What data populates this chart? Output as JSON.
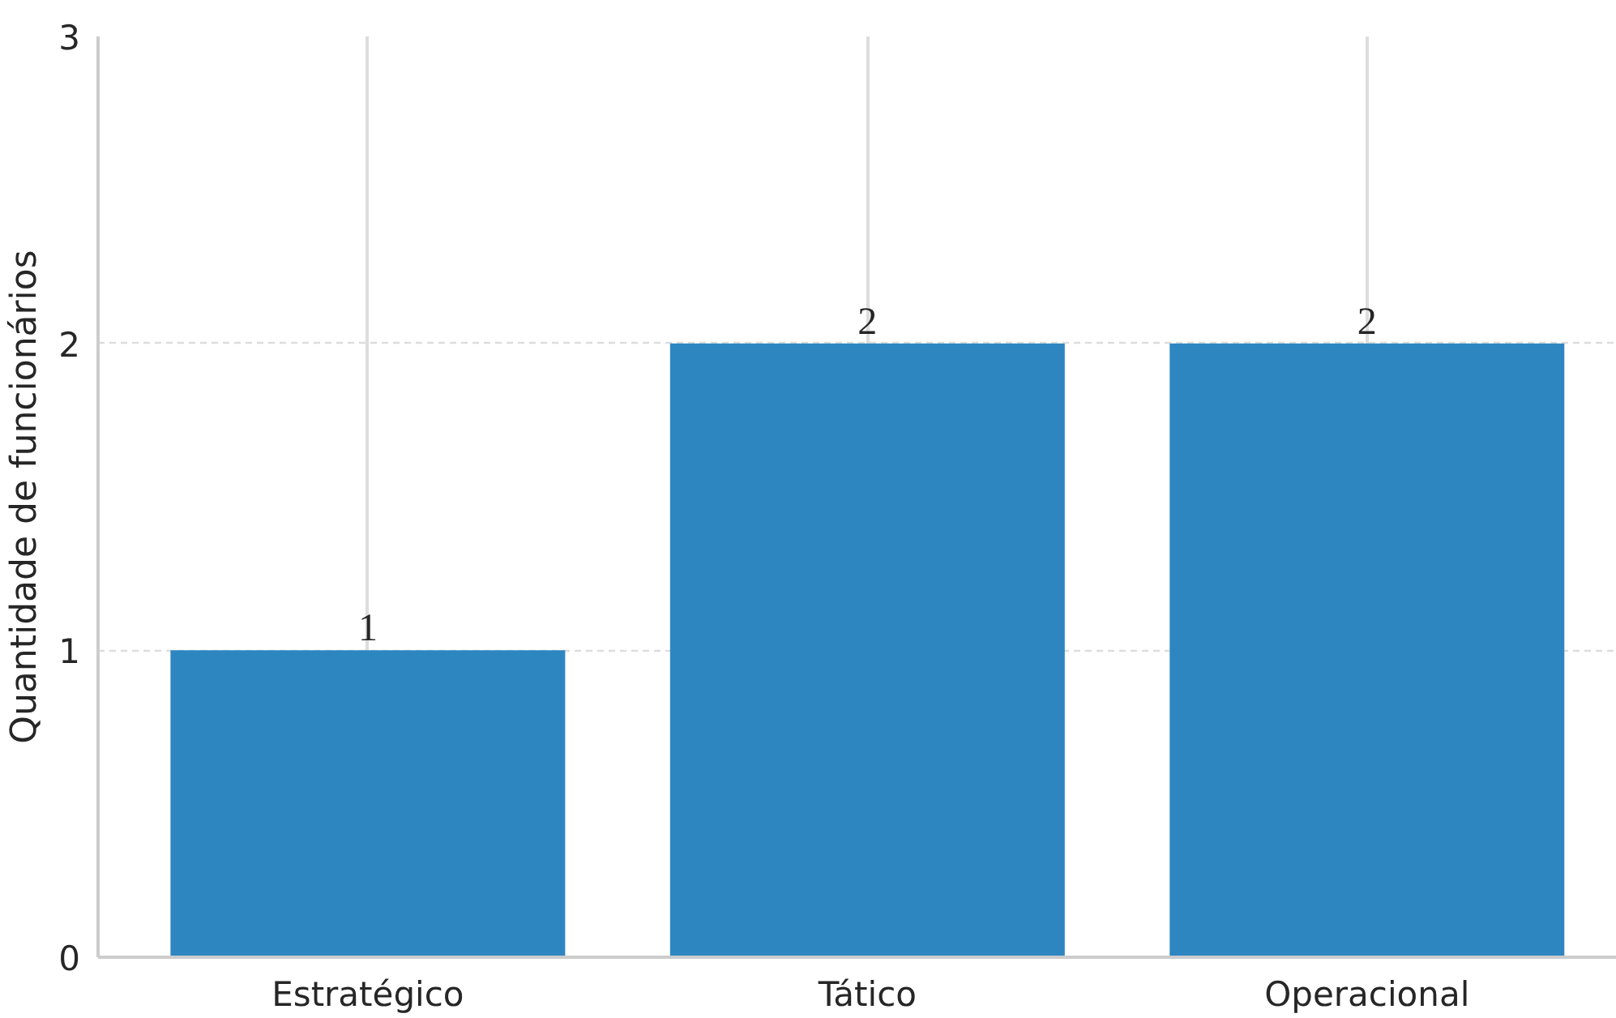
{
  "chart_data": {
    "type": "bar",
    "ylabel": "Quantidade de funcionários",
    "categories": [
      "Estratégico",
      "Tático",
      "Operacional"
    ],
    "values": [
      1,
      2,
      2
    ],
    "color": "#2e86c1",
    "ylim": [
      0,
      3
    ],
    "yticks": [
      0,
      1,
      2,
      3
    ],
    "grid": true,
    "data_labels": true
  }
}
